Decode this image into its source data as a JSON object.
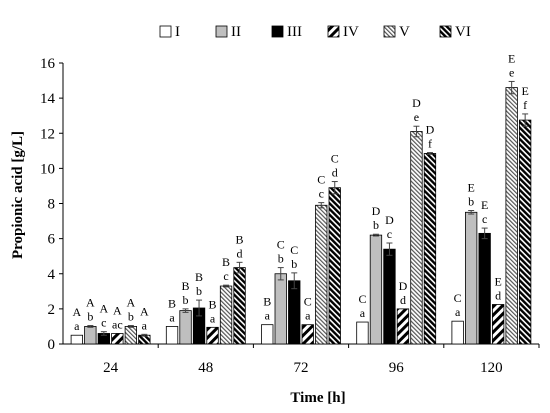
{
  "chart_data": {
    "type": "bar",
    "title": "",
    "xlabel": "Time [h]",
    "ylabel": "Propionic acid [g/L]",
    "categories": [
      "24",
      "48",
      "72",
      "96",
      "120"
    ],
    "ylim": [
      0,
      16
    ],
    "yticks": [
      "0",
      "2",
      "4",
      "6",
      "8",
      "10",
      "12",
      "14",
      "16"
    ],
    "grid": false,
    "legend": {
      "placement": "top",
      "entries": [
        "I",
        "II",
        "III",
        "IV",
        "V",
        "VI"
      ]
    },
    "series": [
      {
        "name": "I",
        "style": "white",
        "values": [
          0.5,
          1.0,
          1.1,
          1.25,
          1.3
        ],
        "errors": [
          0,
          0,
          0,
          0,
          0
        ],
        "upper": [
          "A",
          "B",
          "B",
          "C",
          "C"
        ],
        "lower": [
          "a",
          "a",
          "a",
          "a",
          "a"
        ]
      },
      {
        "name": "II",
        "style": "gray",
        "values": [
          1.0,
          1.9,
          4.0,
          6.2,
          7.5
        ],
        "errors": [
          0.05,
          0.1,
          0.35,
          0.05,
          0.1
        ],
        "upper": [
          "A",
          "B",
          "C",
          "D",
          "E"
        ],
        "lower": [
          "b",
          "b",
          "b",
          "b",
          "b"
        ]
      },
      {
        "name": "III",
        "style": "black",
        "values": [
          0.6,
          2.05,
          3.6,
          5.4,
          6.3
        ],
        "errors": [
          0.1,
          0.45,
          0.45,
          0.35,
          0.3
        ],
        "upper": [
          "A",
          "B",
          "C",
          "D",
          "E"
        ],
        "lower": [
          "c",
          "b",
          "b",
          "c",
          "c"
        ]
      },
      {
        "name": "IV",
        "style": "stripe-wide",
        "values": [
          0.6,
          0.95,
          1.1,
          2.0,
          2.25
        ],
        "errors": [
          0,
          0,
          0,
          0,
          0
        ],
        "upper": [
          "A",
          "B",
          "C",
          "D",
          "E"
        ],
        "lower": [
          "ac",
          "a",
          "a",
          "d",
          "d"
        ]
      },
      {
        "name": "V",
        "style": "stripe-fine",
        "values": [
          1.0,
          3.3,
          7.9,
          12.1,
          14.6
        ],
        "errors": [
          0.05,
          0.05,
          0.15,
          0.3,
          0.35
        ],
        "upper": [
          "A",
          "B",
          "C",
          "D",
          "E"
        ],
        "lower": [
          "b",
          "c",
          "c",
          "e",
          "e"
        ]
      },
      {
        "name": "VI",
        "style": "stripe-dense",
        "values": [
          0.5,
          4.35,
          8.9,
          10.85,
          12.75
        ],
        "errors": [
          0.05,
          0.3,
          0.35,
          0.05,
          0.35
        ],
        "upper": [
          "A",
          "B",
          "C",
          "D",
          "E"
        ],
        "lower": [
          "a",
          "d",
          "d",
          "f",
          "f"
        ]
      }
    ]
  }
}
